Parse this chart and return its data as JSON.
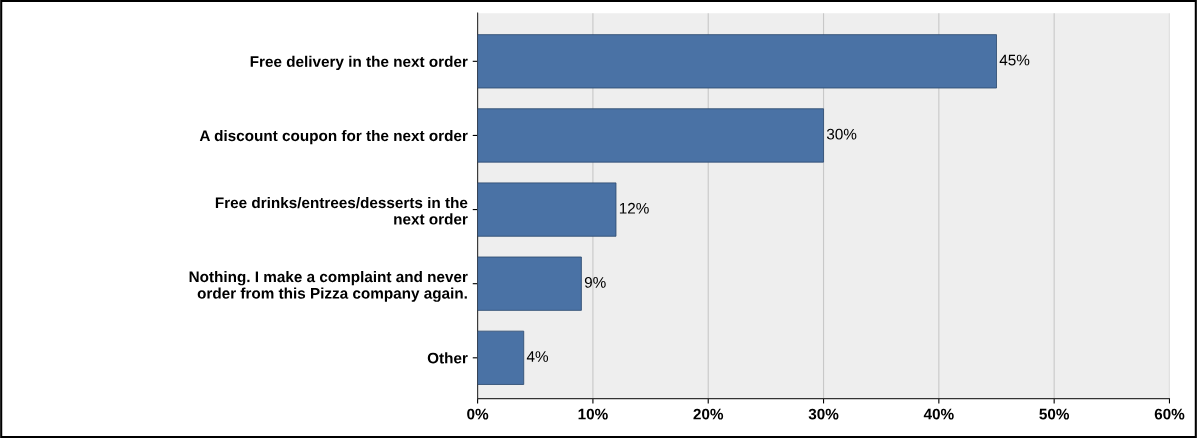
{
  "chart_data": {
    "type": "bar",
    "orientation": "horizontal",
    "categories": [
      "Free delivery in the next order",
      "A discount coupon for the next order",
      "Free drinks/entrees/desserts in the\nnext order",
      "Nothing. I make a complaint and never\norder from this Pizza company again.",
      "Other"
    ],
    "values": [
      45,
      30,
      12,
      9,
      4
    ],
    "value_labels": [
      "45%",
      "30%",
      "12%",
      "9%",
      "4%"
    ],
    "color": "#4a72a5",
    "xlim": [
      0,
      60
    ],
    "xticks": [
      {
        "value": 0,
        "label": "0%"
      },
      {
        "value": 10,
        "label": "10%"
      },
      {
        "value": 20,
        "label": "20%"
      },
      {
        "value": 30,
        "label": "30%"
      },
      {
        "value": 40,
        "label": "40%"
      },
      {
        "value": 50,
        "label": "50%"
      },
      {
        "value": 60,
        "label": "60%"
      }
    ],
    "grid": "x"
  }
}
